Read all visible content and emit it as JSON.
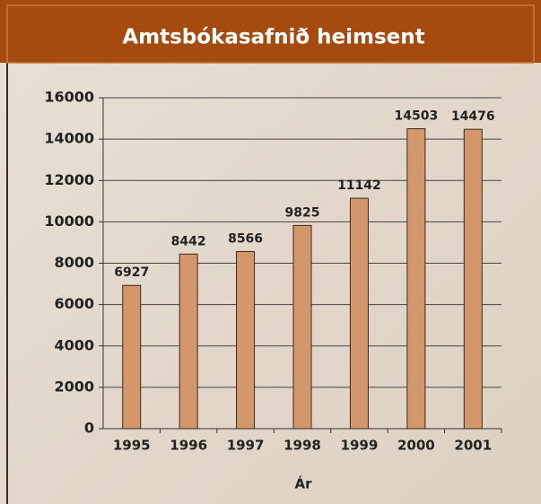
{
  "chart_data": {
    "type": "bar",
    "title": "Amtsbókasafnið heimsent",
    "x_label": "Ár",
    "categories": [
      "1995",
      "1996",
      "1997",
      "1998",
      "1999",
      "2000",
      "2001"
    ],
    "values": [
      6927,
      8442,
      8566,
      9825,
      11142,
      14503,
      14476
    ],
    "color": "#d4976c",
    "ylim": [
      0,
      16000
    ],
    "yticks": [
      0,
      2000,
      4000,
      6000,
      8000,
      10000,
      12000,
      14000,
      16000
    ],
    "grid": true
  }
}
